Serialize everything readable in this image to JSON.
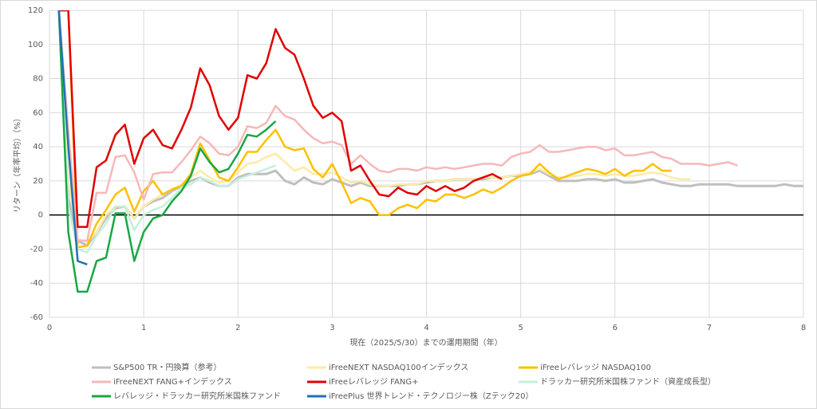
{
  "chart_data": {
    "type": "line",
    "xlabel": "現在（2025/5/30）までの運用期間（年）",
    "ylabel": "リターン（年率平均）（%）",
    "x": [
      0,
      0.1,
      0.2,
      0.3,
      0.4,
      0.5,
      0.6,
      0.7,
      0.8,
      0.9,
      1,
      1.1,
      1.2,
      1.3,
      1.4,
      1.5,
      1.6,
      1.7,
      1.8,
      1.9,
      2,
      2.1,
      2.2,
      2.3,
      2.4,
      2.5,
      2.6,
      2.7,
      2.8,
      2.9,
      3,
      3.1,
      3.2,
      3.3,
      3.4,
      3.5,
      3.6,
      3.7,
      3.8,
      3.9,
      4,
      4.1,
      4.2,
      4.3,
      4.4,
      4.5,
      4.6,
      4.7,
      4.8,
      4.9,
      5,
      5.1,
      5.2,
      5.3,
      5.4,
      5.5,
      5.6,
      5.7,
      5.8,
      5.9,
      6,
      6.1,
      6.2,
      6.3,
      6.4,
      6.5,
      6.6,
      6.7,
      6.8,
      6.9,
      7,
      7.1,
      7.2,
      7.3,
      7.4,
      7.5,
      7.6,
      7.7,
      7.8,
      7.9,
      8
    ],
    "xlim": [
      0,
      8
    ],
    "xticks": [
      0,
      1,
      2,
      3,
      4,
      5,
      6,
      7,
      8
    ],
    "ylim": [
      -60,
      120
    ],
    "yticks": [
      -60,
      -40,
      -20,
      0,
      20,
      40,
      60,
      80,
      100,
      120
    ],
    "grid": true,
    "series": [
      {
        "name": "S&P500 TR・円換算（参考）",
        "color": "#bfbfbf",
        "values": [
          null,
          120,
          10,
          -15,
          -18,
          -10,
          -2,
          4,
          5,
          -2,
          5,
          8,
          10,
          14,
          17,
          20,
          22,
          19,
          17,
          17,
          22,
          24,
          24,
          24,
          26,
          20,
          18,
          22,
          19,
          18,
          21,
          19,
          17,
          19,
          17,
          17,
          17,
          17,
          18,
          18,
          19,
          20,
          20,
          21,
          21,
          21,
          21,
          22,
          22,
          23,
          23,
          24,
          26,
          23,
          20,
          20,
          20,
          21,
          21,
          20,
          21,
          19,
          19,
          20,
          21,
          19,
          18,
          17,
          17,
          18,
          18,
          18,
          18,
          17,
          17,
          17,
          17,
          17,
          18,
          17,
          17
        ]
      },
      {
        "name": "iFreeNEXT NASDAQ100インデックス",
        "color": "#ffeaa8",
        "values": [
          null,
          120,
          20,
          -14,
          -16,
          -10,
          0,
          5,
          5,
          -2,
          5,
          9,
          12,
          15,
          18,
          22,
          26,
          22,
          19,
          20,
          25,
          30,
          31,
          34,
          36,
          31,
          26,
          28,
          24,
          24,
          25,
          22,
          19,
          20,
          18,
          17,
          17,
          18,
          18,
          18,
          20,
          20,
          20,
          21,
          21,
          21,
          22,
          22,
          22,
          23,
          24,
          25,
          27,
          24,
          22,
          22,
          23,
          24,
          24,
          23,
          24,
          23,
          23,
          24,
          25,
          24,
          22,
          21,
          21,
          null,
          null,
          null,
          null,
          null,
          null,
          null,
          null,
          null,
          null,
          null,
          null
        ]
      },
      {
        "name": "iFreeレバレッジ NASDAQ100",
        "color": "#ffc000",
        "values": [
          null,
          120,
          120,
          -19,
          -18,
          -5,
          3,
          12,
          16,
          2,
          14,
          20,
          12,
          15,
          17,
          24,
          42,
          32,
          22,
          20,
          28,
          37,
          37,
          44,
          50,
          40,
          38,
          39,
          27,
          22,
          30,
          19,
          7,
          10,
          8,
          0,
          0,
          4,
          6,
          4,
          9,
          8,
          12,
          12,
          10,
          12,
          15,
          13,
          16,
          20,
          23,
          24,
          30,
          25,
          21,
          23,
          25,
          27,
          26,
          24,
          27,
          23,
          26,
          26,
          30,
          26,
          26,
          null,
          null,
          null,
          null,
          null,
          null,
          null,
          null,
          null,
          null,
          null,
          null,
          null,
          null
        ]
      },
      {
        "name": "iFreeNEXT FANG+インデックス",
        "color": "#f6b8b8",
        "values": [
          null,
          120,
          50,
          -15,
          -15,
          13,
          13,
          34,
          35,
          25,
          9,
          24,
          25,
          25,
          31,
          38,
          46,
          42,
          36,
          35,
          40,
          52,
          51,
          54,
          64,
          58,
          56,
          50,
          45,
          42,
          43,
          41,
          30,
          35,
          30,
          26,
          25,
          27,
          27,
          26,
          28,
          27,
          28,
          27,
          28,
          29,
          30,
          30,
          29,
          34,
          36,
          37,
          41,
          37,
          37,
          38,
          39,
          40,
          40,
          38,
          39,
          35,
          35,
          36,
          37,
          34,
          33,
          30,
          30,
          30,
          29,
          30,
          31,
          29,
          null,
          null,
          null,
          null,
          null,
          null,
          null
        ]
      },
      {
        "name": "iFreeレバレッジ FANG+",
        "color": "#e00000",
        "values": [
          null,
          120,
          120,
          -7,
          -7,
          28,
          32,
          47,
          53,
          30,
          45,
          50,
          41,
          39,
          50,
          63,
          86,
          76,
          58,
          50,
          57,
          82,
          80,
          89,
          109,
          98,
          94,
          80,
          64,
          57,
          60,
          55,
          26,
          29,
          20,
          12,
          11,
          16,
          13,
          12,
          17,
          14,
          17,
          14,
          16,
          20,
          22,
          24,
          21,
          null,
          null,
          null,
          null,
          null,
          null,
          null,
          null,
          null,
          null,
          null,
          null,
          null,
          null,
          null,
          null,
          null,
          null,
          null,
          null,
          null,
          null,
          null,
          null,
          null,
          null,
          null,
          null,
          null,
          null,
          null,
          null
        ]
      },
      {
        "name": "ドラッカー研究所米国株ファンド（資産成長型）",
        "color": "#c6f0db",
        "values": [
          null,
          120,
          5,
          -20,
          -22,
          -12,
          -5,
          5,
          5,
          -9,
          0,
          3,
          5,
          10,
          16,
          18,
          22,
          20,
          17,
          17,
          21,
          23,
          25,
          27,
          29,
          null,
          null,
          null,
          null,
          null,
          null,
          null,
          null,
          null,
          null,
          null,
          null,
          null,
          null,
          null,
          null,
          null,
          null,
          null,
          null,
          null,
          null,
          null,
          null,
          null,
          null,
          null,
          null,
          null,
          null,
          null,
          null,
          null,
          null,
          null,
          null,
          null,
          null,
          null,
          null,
          null,
          null,
          null,
          null,
          null,
          null,
          null,
          null,
          null,
          null,
          null,
          null,
          null,
          null,
          null,
          null
        ]
      },
      {
        "name": "レバレッジ・ドラッカー研究所米国株ファンド",
        "color": "#17a844",
        "values": [
          null,
          120,
          -10,
          -45,
          -45,
          -27,
          -25,
          1,
          1,
          -27,
          -10,
          -2,
          0,
          8,
          14,
          23,
          39,
          31,
          25,
          27,
          36,
          47,
          46,
          50,
          55,
          null,
          null,
          null,
          null,
          null,
          null,
          null,
          null,
          null,
          null,
          null,
          null,
          null,
          null,
          null,
          null,
          null,
          null,
          null,
          null,
          null,
          null,
          null,
          null,
          null,
          null,
          null,
          null,
          null,
          null,
          null,
          null,
          null,
          null,
          null,
          null,
          null,
          null,
          null,
          null,
          null,
          null,
          null,
          null,
          null,
          null,
          null,
          null,
          null,
          null,
          null,
          null,
          null,
          null,
          null,
          null
        ]
      },
      {
        "name": "iFreePlus 世界トレンド・テクノロジー株（Zテック20）",
        "color": "#1f72b8",
        "values": [
          null,
          120,
          40,
          -27,
          -29,
          null,
          null,
          null,
          null,
          null,
          null,
          null,
          null,
          null,
          null,
          null,
          null,
          null,
          null,
          null,
          null,
          null,
          null,
          null,
          null,
          null,
          null,
          null,
          null,
          null,
          null,
          null,
          null,
          null,
          null,
          null,
          null,
          null,
          null,
          null,
          null,
          null,
          null,
          null,
          null,
          null,
          null,
          null,
          null,
          null,
          null,
          null,
          null,
          null,
          null,
          null,
          null,
          null,
          null,
          null,
          null,
          null,
          null,
          null,
          null,
          null,
          null,
          null,
          null,
          null,
          null,
          null,
          null,
          null,
          null,
          null,
          null,
          null,
          null,
          null,
          null
        ]
      }
    ]
  }
}
